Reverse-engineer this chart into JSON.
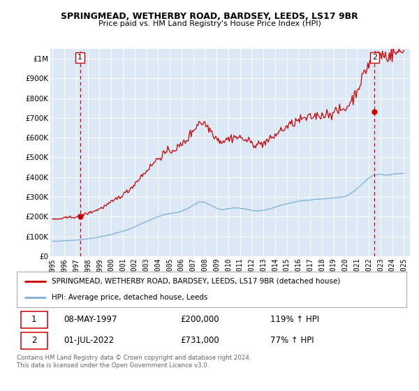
{
  "title": "SPRINGMEAD, WETHERBY ROAD, BARDSEY, LEEDS, LS17 9BR",
  "subtitle": "Price paid vs. HM Land Registry's House Price Index (HPI)",
  "hpi_label": "HPI: Average price, detached house, Leeds",
  "property_label": "SPRINGMEAD, WETHERBY ROAD, BARDSEY, LEEDS, LS17 9BR (detached house)",
  "sale1_date": "08-MAY-1997",
  "sale1_price": 200000,
  "sale1_hpi": "119% ↑ HPI",
  "sale2_date": "01-JUL-2022",
  "sale2_price": 731000,
  "sale2_hpi": "77% ↑ HPI",
  "sale1_x": 1997.35,
  "sale2_x": 2022.5,
  "ylim_min": 0,
  "ylim_max": 1050000,
  "xlim_min": 1994.8,
  "xlim_max": 2025.5,
  "hpi_color": "#7ab0d8",
  "property_color": "#cc0000",
  "dashed_color": "#cc0000",
  "bg_color": "#dce8f5",
  "grid_color": "#ffffff",
  "legend_border_color": "#aaaaaa",
  "footer_text": "Contains HM Land Registry data © Crown copyright and database right 2024.\nThis data is licensed under the Open Government Licence v3.0.",
  "yticks": [
    0,
    100000,
    200000,
    300000,
    400000,
    500000,
    600000,
    700000,
    800000,
    900000,
    1000000
  ],
  "ytick_labels": [
    "£0",
    "£100K",
    "£200K",
    "£300K",
    "£400K",
    "£500K",
    "£600K",
    "£700K",
    "£800K",
    "£900K",
    "£1M"
  ],
  "xticks": [
    1995,
    1996,
    1997,
    1998,
    1999,
    2000,
    2001,
    2002,
    2003,
    2004,
    2005,
    2006,
    2007,
    2008,
    2009,
    2010,
    2011,
    2012,
    2013,
    2014,
    2015,
    2016,
    2017,
    2018,
    2019,
    2020,
    2021,
    2022,
    2023,
    2024,
    2025
  ]
}
